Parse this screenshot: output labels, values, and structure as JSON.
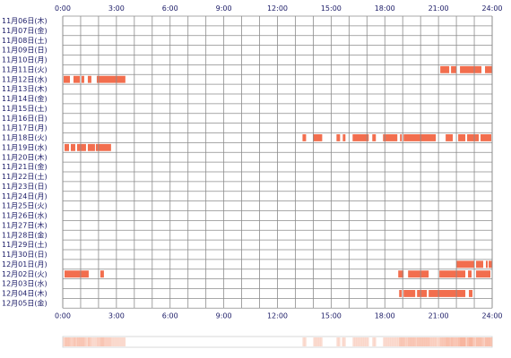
{
  "chart_data": {
    "type": "heatmap",
    "title": "",
    "xlabel": "",
    "ylabel": "",
    "x_unit": "hour of day",
    "xlim": [
      0,
      24
    ],
    "x_ticks": [
      "0:00",
      "3:00",
      "6:00",
      "9:00",
      "12:00",
      "15:00",
      "18:00",
      "21:00",
      "24:00"
    ],
    "colors": {
      "activity": "#f26e4e",
      "grid": "#8c8c8c",
      "summary": "#f7b59e",
      "text": "#1a1a66"
    },
    "days": [
      {
        "label": "11月06日(木)",
        "segments": []
      },
      {
        "label": "11月07日(金)",
        "segments": []
      },
      {
        "label": "11月08日(土)",
        "segments": []
      },
      {
        "label": "11月09日(日)",
        "segments": []
      },
      {
        "label": "11月10日(月)",
        "segments": []
      },
      {
        "label": "11月11日(火)",
        "segments": [
          [
            21.1,
            21.6
          ],
          [
            21.7,
            22.0
          ],
          [
            22.2,
            23.4
          ],
          [
            23.6,
            24.0
          ]
        ]
      },
      {
        "label": "11月12日(水)",
        "segments": [
          [
            0.05,
            0.4
          ],
          [
            0.6,
            0.95
          ],
          [
            1.05,
            1.2
          ],
          [
            1.4,
            1.6
          ],
          [
            1.9,
            3.5
          ]
        ]
      },
      {
        "label": "11月13日(木)",
        "segments": []
      },
      {
        "label": "11月14日(金)",
        "segments": []
      },
      {
        "label": "11月15日(土)",
        "segments": []
      },
      {
        "label": "11月16日(日)",
        "segments": []
      },
      {
        "label": "11月17日(月)",
        "segments": []
      },
      {
        "label": "11月18日(火)",
        "segments": [
          [
            13.4,
            13.6
          ],
          [
            14.0,
            14.5
          ],
          [
            15.3,
            15.5
          ],
          [
            15.65,
            15.8
          ],
          [
            16.2,
            17.1
          ],
          [
            17.3,
            17.5
          ],
          [
            17.9,
            18.7
          ],
          [
            18.85,
            18.95
          ],
          [
            19.05,
            20.85
          ],
          [
            21.4,
            21.8
          ],
          [
            22.1,
            22.5
          ],
          [
            22.6,
            23.25
          ],
          [
            23.35,
            23.95
          ]
        ]
      },
      {
        "label": "11月19日(水)",
        "segments": [
          [
            0.1,
            0.35
          ],
          [
            0.45,
            0.7
          ],
          [
            0.8,
            1.3
          ],
          [
            1.4,
            1.8
          ],
          [
            1.85,
            2.7
          ]
        ]
      },
      {
        "label": "11月20日(木)",
        "segments": []
      },
      {
        "label": "11月21日(金)",
        "segments": []
      },
      {
        "label": "11月22日(土)",
        "segments": []
      },
      {
        "label": "11月23日(日)",
        "segments": []
      },
      {
        "label": "11月24日(月)",
        "segments": []
      },
      {
        "label": "11月25日(火)",
        "segments": []
      },
      {
        "label": "11月26日(水)",
        "segments": []
      },
      {
        "label": "11月27日(木)",
        "segments": []
      },
      {
        "label": "11月28日(金)",
        "segments": []
      },
      {
        "label": "11月29日(土)",
        "segments": []
      },
      {
        "label": "11月30日(日)",
        "segments": []
      },
      {
        "label": "12月01日(月)",
        "segments": [
          [
            22.0,
            23.0
          ],
          [
            23.1,
            23.5
          ],
          [
            23.65,
            23.75
          ],
          [
            23.8,
            24.0
          ]
        ]
      },
      {
        "label": "12月02日(火)",
        "segments": [
          [
            0.1,
            1.45
          ],
          [
            2.1,
            2.3
          ],
          [
            18.75,
            19.05
          ],
          [
            19.3,
            20.45
          ],
          [
            21.05,
            22.5
          ],
          [
            22.65,
            22.85
          ],
          [
            23.1,
            23.9
          ]
        ]
      },
      {
        "label": "12月03日(水)",
        "segments": []
      },
      {
        "label": "12月04日(木)",
        "segments": [
          [
            18.8,
            18.95
          ],
          [
            19.05,
            19.7
          ],
          [
            19.8,
            20.35
          ],
          [
            20.45,
            22.5
          ],
          [
            22.7,
            22.9
          ]
        ]
      },
      {
        "label": "12月05日(金)",
        "segments": []
      }
    ]
  }
}
